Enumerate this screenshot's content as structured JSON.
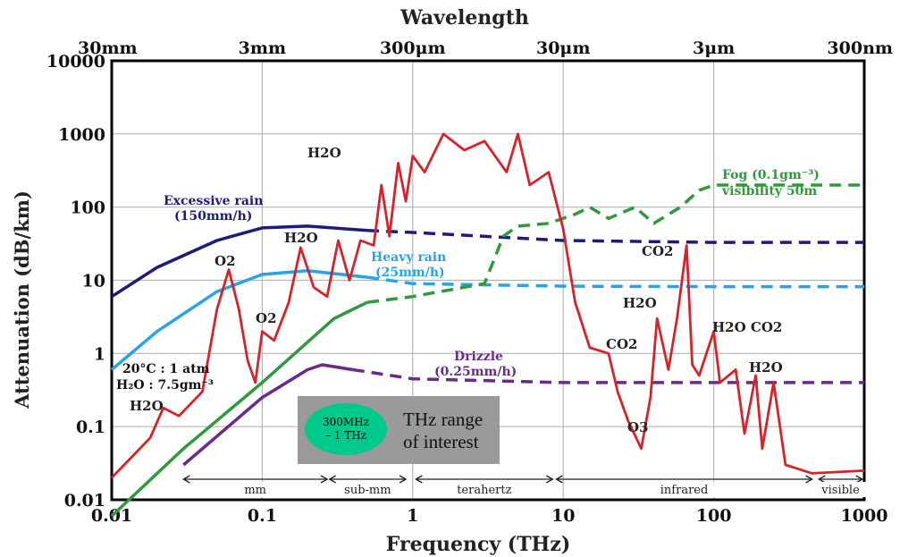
{
  "chart_data": {
    "type": "line",
    "title": "Wavelength",
    "xlabel": "Frequency (THz)",
    "ylabel": "Attenuation (dB/km)",
    "xscale": "log",
    "yscale": "log",
    "xlim": [
      0.01,
      1000
    ],
    "ylim": [
      0.01,
      10000
    ],
    "x_ticks": [
      "0.01",
      "0.1",
      "1",
      "10",
      "100",
      "1000"
    ],
    "y_ticks": [
      "0.01",
      "0.1",
      "1",
      "10",
      "100",
      "1000",
      "10000"
    ],
    "top_axis_ticks": [
      "30mm",
      "3mm",
      "300μm",
      "30μm",
      "3μm",
      "300nm"
    ],
    "grid": true,
    "bands": [
      "mm",
      "sub-mm",
      "terahertz",
      "infrared",
      "visible"
    ],
    "series": [
      {
        "name": "Excessive rain (150mm/h)",
        "color": "#1c1c7a",
        "style": "solid-then-dashed",
        "points": [
          [
            0.01,
            6
          ],
          [
            0.02,
            15
          ],
          [
            0.05,
            35
          ],
          [
            0.1,
            52
          ],
          [
            0.2,
            55
          ],
          [
            0.5,
            48
          ],
          [
            1,
            45
          ],
          [
            10,
            35
          ],
          [
            100,
            33
          ],
          [
            1000,
            33
          ]
        ]
      },
      {
        "name": "Heavy rain (25mm/h)",
        "color": "#29a3e8",
        "style": "solid-then-dashed",
        "points": [
          [
            0.01,
            0.6
          ],
          [
            0.02,
            2
          ],
          [
            0.05,
            7
          ],
          [
            0.1,
            12
          ],
          [
            0.2,
            13.5
          ],
          [
            0.5,
            11
          ],
          [
            1,
            9
          ],
          [
            10,
            8.3
          ],
          [
            100,
            8.2
          ],
          [
            1000,
            8.2
          ]
        ]
      },
      {
        "name": "Fog (0.1gm⁻³) visibility 50m",
        "color": "#2e9a3a",
        "style": "solid-then-dashed",
        "points": [
          [
            0.01,
            0.006
          ],
          [
            0.03,
            0.05
          ],
          [
            0.1,
            0.4
          ],
          [
            0.3,
            3
          ],
          [
            0.5,
            5
          ],
          [
            1,
            6
          ],
          [
            3,
            9
          ],
          [
            4,
            40
          ],
          [
            5,
            55
          ],
          [
            8,
            60
          ],
          [
            12,
            80
          ],
          [
            15,
            100
          ],
          [
            20,
            70
          ],
          [
            30,
            100
          ],
          [
            40,
            60
          ],
          [
            60,
            100
          ],
          [
            80,
            170
          ],
          [
            100,
            200
          ],
          [
            1000,
            200
          ]
        ]
      },
      {
        "name": "Drizzle (0.25mm/h)",
        "color": "#6a2a8c",
        "style": "solid-then-dashed",
        "points": [
          [
            0.01,
            0.003
          ],
          [
            0.03,
            0.03
          ],
          [
            0.1,
            0.25
          ],
          [
            0.2,
            0.6
          ],
          [
            0.25,
            0.7
          ],
          [
            0.4,
            0.6
          ],
          [
            1,
            0.45
          ],
          [
            10,
            0.4
          ],
          [
            100,
            0.4
          ],
          [
            1000,
            0.4
          ]
        ]
      },
      {
        "name": "20°C : 1 atm H2O : 7.5gm-3",
        "color": "#d4232a",
        "style": "solid",
        "points": [
          [
            0.01,
            0.02
          ],
          [
            0.018,
            0.07
          ],
          [
            0.022,
            0.18
          ],
          [
            0.028,
            0.14
          ],
          [
            0.04,
            0.3
          ],
          [
            0.05,
            4
          ],
          [
            0.06,
            14
          ],
          [
            0.07,
            4
          ],
          [
            0.08,
            0.8
          ],
          [
            0.09,
            0.4
          ],
          [
            0.1,
            2
          ],
          [
            0.12,
            1.5
          ],
          [
            0.15,
            5
          ],
          [
            0.18,
            28
          ],
          [
            0.22,
            8
          ],
          [
            0.27,
            6
          ],
          [
            0.32,
            35
          ],
          [
            0.38,
            10
          ],
          [
            0.45,
            35
          ],
          [
            0.55,
            30
          ],
          [
            0.62,
            200
          ],
          [
            0.7,
            40
          ],
          [
            0.8,
            400
          ],
          [
            0.9,
            120
          ],
          [
            1.0,
            500
          ],
          [
            1.2,
            300
          ],
          [
            1.6,
            1000
          ],
          [
            2.2,
            600
          ],
          [
            3,
            800
          ],
          [
            4.2,
            300
          ],
          [
            5,
            1000
          ],
          [
            6,
            200
          ],
          [
            8,
            300
          ],
          [
            10,
            50
          ],
          [
            12,
            5
          ],
          [
            15,
            1.2
          ],
          [
            20,
            1.0
          ],
          [
            23,
            0.3
          ],
          [
            27,
            0.12
          ],
          [
            33,
            0.05
          ],
          [
            38,
            0.25
          ],
          [
            42,
            3
          ],
          [
            50,
            0.6
          ],
          [
            57,
            3
          ],
          [
            66,
            30
          ],
          [
            72,
            0.7
          ],
          [
            80,
            0.5
          ],
          [
            100,
            2
          ],
          [
            110,
            0.4
          ],
          [
            140,
            0.6
          ],
          [
            160,
            0.08
          ],
          [
            190,
            0.5
          ],
          [
            210,
            0.05
          ],
          [
            250,
            0.4
          ],
          [
            300,
            0.03
          ],
          [
            450,
            0.023
          ],
          [
            1000,
            0.025
          ]
        ]
      }
    ],
    "annotations": [
      "H2O",
      "O2",
      "O2",
      "H2O",
      "H2O",
      "CO2",
      "H2O",
      "CO2",
      "O3",
      "H2O CO2",
      "H2O",
      "CO2"
    ]
  },
  "labels": {
    "excessive_rain": "Excessive rain",
    "excessive_rain_rate": "(150mm/h)",
    "heavy_rain": "Heavy rain",
    "heavy_rain_rate": "(25mm/h)",
    "fog_line1": "Fog (0.1gm⁻³)",
    "fog_line2": "visibility 50m",
    "drizzle": "Drizzle",
    "drizzle_rate": "(0.25mm/h)",
    "conditions_line1": "20°C : 1 atm",
    "conditions_line2": "H₂O : 7.5gm⁻³"
  },
  "callout": {
    "ellipse_line1": "300MHz",
    "ellipse_line2": "– 1 THz",
    "text_line1": "THz range",
    "text_line2": "of interest"
  }
}
